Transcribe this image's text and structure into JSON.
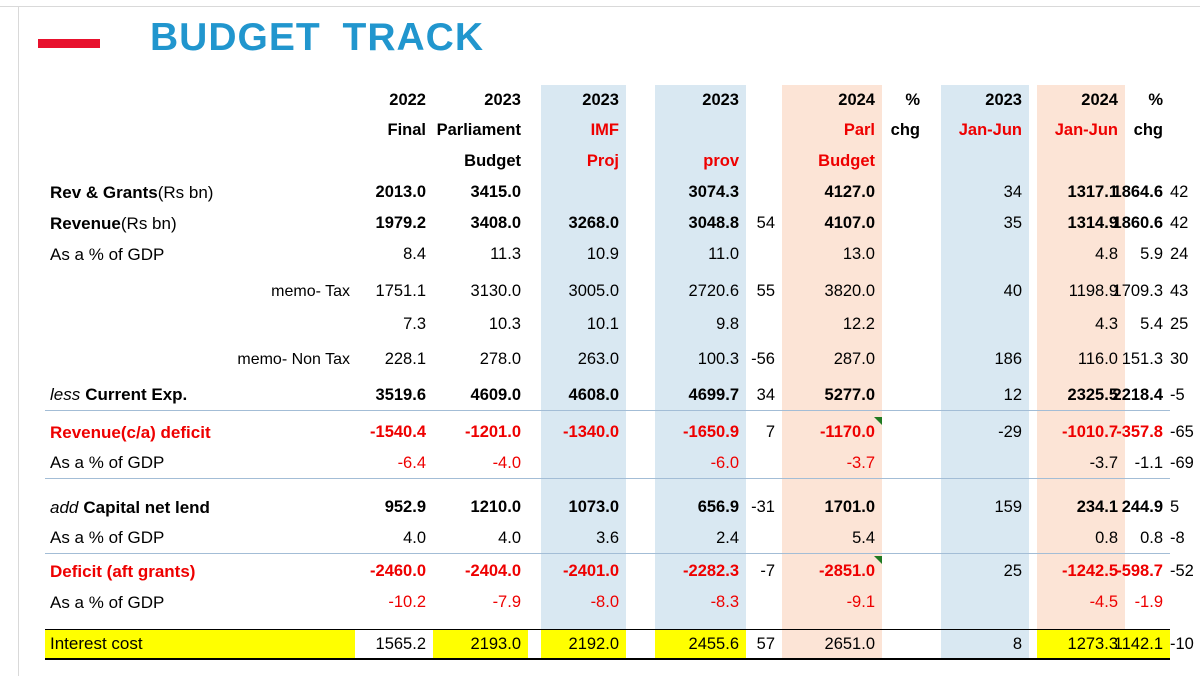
{
  "title": "BUDGET TRACK",
  "colors": {
    "title_blue": "#2196ce",
    "accent_red": "#e8112d",
    "highlight_yellow": "#ffff00",
    "column_blue": "#d9e8f2",
    "column_peach": "#fce4d6",
    "negative_red": "#ee0000",
    "marker_green": "#217a21",
    "separator_line": "#a3bdd6"
  },
  "table": {
    "header": {
      "years": {
        "c0": "2022",
        "c1": "2023",
        "c2": "2023",
        "c3": "2023",
        "c5": "2024",
        "c6": "%",
        "c7": "2023",
        "c8": "2024",
        "c9": "%"
      },
      "line2": {
        "c0": "Final",
        "c1": "Parliament",
        "c2": "IMF",
        "c5": "Parl",
        "c6": "chg",
        "c7": "Jan-Jun",
        "c8": "Jan-Jun",
        "c9": "chg"
      },
      "line3": {
        "c1": "Budget",
        "c2": "Proj",
        "c3": "prov",
        "c5": "Budget"
      }
    },
    "rows": [
      {
        "label": "Rev & Grants",
        "label_suffix": " (Rs bn)",
        "label_style": "b",
        "style": "b",
        "values": [
          "2013.0",
          "3415.0",
          "",
          "3074.3",
          "",
          "4127.0",
          "34",
          "1317.1",
          "1864.6",
          "42"
        ]
      },
      {
        "label": "Revenue",
        "label_suffix": " (Rs bn)",
        "label_style": "b",
        "style": "b",
        "values": [
          "1979.2",
          "3408.0",
          "3268.0",
          "3048.8",
          "54",
          "4107.0",
          "35",
          "1314.9",
          "1860.6",
          "42"
        ]
      },
      {
        "label": "As a % of GDP",
        "label_style": "r",
        "style": "r",
        "values": [
          "8.4",
          "11.3",
          "10.9",
          "11.0",
          "",
          "13.0",
          "",
          "4.8",
          "5.9",
          "24"
        ]
      },
      {
        "label": "memo- Tax",
        "label_style": "r",
        "label_align": "right",
        "style": "r",
        "gap": 6,
        "values": [
          "1751.1",
          "3130.0",
          "3005.0",
          "2720.6",
          "55",
          "3820.0",
          "40",
          "1198.9",
          "1709.3",
          "43"
        ]
      },
      {
        "label": "",
        "label_style": "r",
        "style": "r",
        "gap": 2,
        "values": [
          "7.3",
          "10.3",
          "10.1",
          "9.8",
          "",
          "12.2",
          "",
          "4.3",
          "5.4",
          "25"
        ]
      },
      {
        "label": "memo- Non Tax",
        "label_style": "r",
        "label_align": "right",
        "style": "r",
        "gap": 4,
        "values": [
          "228.1",
          "278.0",
          "263.0",
          "100.3",
          "-56",
          "287.0",
          "186",
          "116.0",
          "151.3",
          "30"
        ]
      },
      {
        "label_prefix": "less",
        "label": "Current Exp.",
        "label_style": "b",
        "style": "b",
        "gap": 5,
        "sep": true,
        "values": [
          "3519.6",
          "4609.0",
          "4608.0",
          "4699.7",
          "34",
          "5277.0",
          "12",
          "2325.5",
          "2218.4",
          "-5"
        ]
      },
      {
        "label": "Revenue(c/a) deficit",
        "label_style": "rb",
        "style": "rb",
        "gap": 6,
        "markers": [
          5
        ],
        "values": [
          "-1540.4",
          "-1201.0",
          "-1340.0",
          "-1650.9",
          "7",
          "-1170.0",
          "-29",
          "-1010.7",
          "-357.8",
          "-65"
        ]
      },
      {
        "label": "As a % of GDP",
        "label_style": "r",
        "style": "rr",
        "sep": true,
        "overrides": {
          "7": "k",
          "8": "k"
        },
        "values": [
          "-6.4",
          "-4.0",
          "",
          "-6.0",
          "",
          "-3.7",
          "",
          "-3.7",
          "-1.1",
          "-69"
        ]
      },
      {
        "label_prefix": "add",
        "label": "Capital net lend",
        "label_style": "b",
        "style": "b",
        "gap": 13,
        "values": [
          "952.9",
          "1210.0",
          "1073.0",
          "656.9",
          "-31",
          "1701.0",
          "159",
          "234.1",
          "244.9",
          "5"
        ]
      },
      {
        "label": "As a % of GDP",
        "label_style": "r",
        "style": "r",
        "sep": true,
        "values": [
          "4.0",
          "4.0",
          "3.6",
          "2.4",
          "",
          "5.4",
          "",
          "0.8",
          "0.8",
          "-8"
        ]
      },
      {
        "label": "Deficit (aft grants)",
        "label_style": "rb",
        "style": "rb",
        "gap": 2,
        "markers": [
          5
        ],
        "values": [
          "-2460.0",
          "-2404.0",
          "-2401.0",
          "-2282.3",
          "-7",
          "-2851.0",
          "25",
          "-1242.5",
          "-598.7",
          "-52"
        ]
      },
      {
        "label": "As a % of GDP",
        "label_style": "r",
        "style": "rr",
        "values": [
          "-10.2",
          "-7.9",
          "-8.0",
          "-8.3",
          "",
          "-9.1",
          "",
          "-4.5",
          "-1.9",
          ""
        ]
      },
      {
        "label": "Interest cost",
        "label_style": "r",
        "style": "r",
        "gap": 11,
        "box": true,
        "yellow_cells": [
          -1,
          1,
          2,
          3,
          7,
          8
        ],
        "values": [
          "1565.2",
          "2193.0",
          "2192.0",
          "2455.6",
          "57",
          "2651.0",
          "8",
          "1273.3",
          "1142.1",
          "-10"
        ]
      }
    ]
  }
}
